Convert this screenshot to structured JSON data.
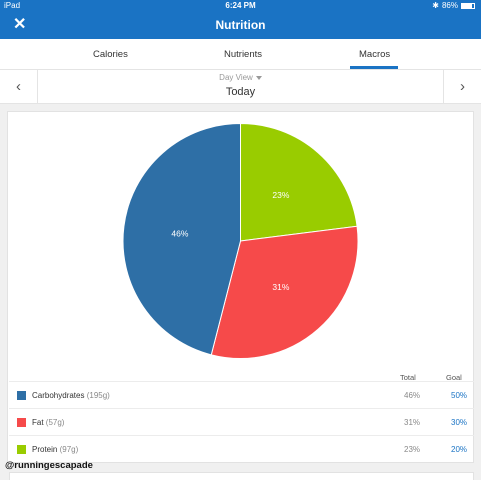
{
  "status_bar": {
    "device": "iPad",
    "time": "6:24 PM",
    "battery": "86%",
    "battery_level": 0.86
  },
  "nav": {
    "title": "Nutrition",
    "close_icon": "close-icon"
  },
  "tabs": [
    {
      "label": "Calories",
      "active": false
    },
    {
      "label": "Nutrients",
      "active": false
    },
    {
      "label": "Macros",
      "active": true
    }
  ],
  "day": {
    "view_label": "Day View",
    "date_label": "Today",
    "prev_icon": "chevron-left-icon",
    "next_icon": "chevron-right-icon"
  },
  "table": {
    "col_total": "Total",
    "col_goal": "Goal"
  },
  "chart_data": {
    "type": "pie",
    "slices": [
      {
        "name": "Carbohydrates",
        "grams": "(195g)",
        "value": 46,
        "label": "46%",
        "color": "#2e6fa6",
        "total": "46%",
        "goal": "50%"
      },
      {
        "name": "Fat",
        "grams": "(57g)",
        "value": 31,
        "label": "31%",
        "color": "#f64a4a",
        "total": "31%",
        "goal": "30%"
      },
      {
        "name": "Protein",
        "grams": "(97g)",
        "value": 23,
        "label": "23%",
        "color": "#99cc00",
        "total": "23%",
        "goal": "20%"
      }
    ]
  },
  "credit": "@runningescapade"
}
